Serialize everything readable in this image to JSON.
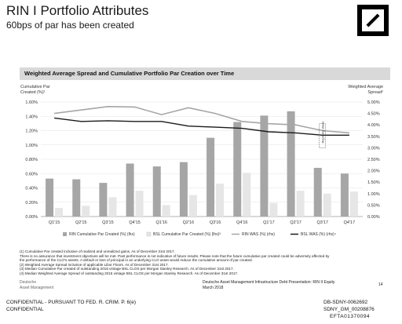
{
  "header": {
    "title": "RIN I Portfolio Attributes",
    "subtitle": "60bps of par has been created"
  },
  "banner": {
    "text": "Weighted Average Spread and Cumulative Portfolio Par Creation over Time"
  },
  "colors": {
    "rin_par": "#a6a6a6",
    "bsl_par": "#e6e6e6",
    "rin_was": "#a6a6a6",
    "bsl_was": "#1a1a1a",
    "banner_bg": "#d9d9d9"
  },
  "chart_data": {
    "type": "bar",
    "left_axis_title": [
      "Cumulative Par",
      "Created (%)¹"
    ],
    "right_axis_title": [
      "Weighted Average",
      "Spread²"
    ],
    "categories": [
      "Q1'15",
      "Q2'15",
      "Q3'15",
      "Q4'15",
      "Q1'16",
      "Q2'16",
      "Q3'16",
      "Q4'16",
      "Q1'17",
      "Q2'17",
      "Q3'17",
      "Q4'17"
    ],
    "left_ticks": [
      "0.00%",
      "0.20%",
      "0.40%",
      "0.60%",
      "0.80%",
      "1.00%",
      "1.20%",
      "1.40%",
      "1.60%"
    ],
    "right_ticks": [
      "0.00%",
      "0.50%",
      "1.00%",
      "1.50%",
      "2.00%",
      "2.50%",
      "3.00%",
      "3.50%",
      "4.00%",
      "4.50%",
      "5.00%"
    ],
    "ylim_left": [
      0,
      1.6
    ],
    "ylim_right": [
      0,
      5.0
    ],
    "series": [
      {
        "name": "RIN Cumulative Par Created (%) (lhs)",
        "kind": "bar",
        "values": [
          0.53,
          0.52,
          0.47,
          0.74,
          0.7,
          0.76,
          1.1,
          1.32,
          1.41,
          1.47,
          0.68,
          0.6
        ]
      },
      {
        "name": "BSL Cumulative Par Created (%) (lhs)³",
        "kind": "bar",
        "values": [
          0.12,
          0.15,
          0.27,
          0.36,
          0.16,
          0.3,
          0.46,
          0.61,
          0.19,
          0.36,
          0.32,
          0.35
        ]
      },
      {
        "name": "RIN WAS (%) (rhs)",
        "kind": "line",
        "values": [
          4.5,
          4.65,
          4.8,
          4.78,
          4.45,
          4.75,
          4.5,
          4.15,
          4.05,
          4.0,
          3.75,
          3.65
        ]
      },
      {
        "name": "BSL WAS (%) (rhs)⁴",
        "kind": "line",
        "values": [
          4.3,
          4.15,
          4.18,
          4.15,
          4.15,
          3.95,
          3.9,
          3.85,
          3.7,
          3.65,
          3.55,
          3.55
        ]
      }
    ],
    "annotation": "Repricing Wave"
  },
  "footnotes": [
    "(1) Cumulative Par created inclusive of realized and unrealized gains. As of December 31st 2017.",
    "There is no assurance that investment objectives will be met. Past performance is not indicative of future results. Please note that the future cumulative par created could be adversely affected by",
    "the performance of the CLO's assets. A default or loss of principal in an underlying CLO asset would reduce the cumulative amount of par created.",
    "(2) Weighted Average Spread inclusive of applicable Libor Floors. As of December 31st 2017.",
    "(3) Median Cumulative Par created of outstanding 2015 vintage BSL CLOS per Morgan Stanley Research. As of December 31st 2017.",
    "(4) Median Weighted Average Spread of outstanding 2015 vintage BSL CLOS per Morgan Stanley Research. As of December 31st 2017."
  ],
  "footer": {
    "company_line1": "Deutsche",
    "company_line2": "Asset Management",
    "doc_line1": "Deutsche Asset Management Infrastructure Debt Presentation: RIN II Equity",
    "doc_line2": "March 2018",
    "page_number": "14",
    "confidential1": "CONFIDENTIAL - PURSUANT TO FED. R. CRIM. P. 6(e)",
    "confidential2": "CONFIDENTIAL",
    "bates1": "DB-SDNY-0062692",
    "bates2": "SDNY_GM_00208876",
    "bates3": "EFTA01370094"
  }
}
